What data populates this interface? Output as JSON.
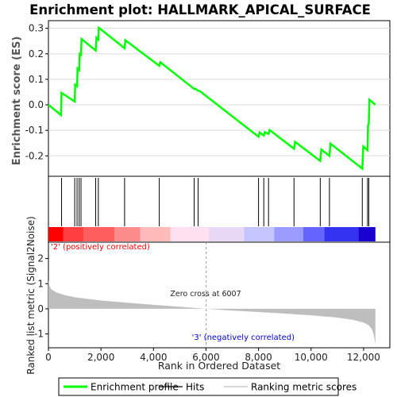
{
  "chart_data": {
    "title": "Enrichment plot: HALLMARK_APICAL_SURFACE",
    "es_panel": {
      "type": "line",
      "ylabel": "Enrichment score (ES)",
      "ylim": [
        -0.28,
        0.33
      ],
      "yticks": [
        "-0.2",
        "-0.1",
        "0.0",
        "0.1",
        "0.2",
        "0.3"
      ],
      "ytick_values": [
        -0.2,
        -0.1,
        0.0,
        0.1,
        0.2,
        0.3
      ],
      "line_color": "#00ff00",
      "series": [
        {
          "name": "Enrichment profile",
          "x": [
            0,
            480,
            500,
            1000,
            1020,
            1090,
            1110,
            1170,
            1190,
            1240,
            1260,
            1800,
            1830,
            1900,
            1920,
            2900,
            2930,
            4220,
            4260,
            5550,
            5600,
            5700,
            5750,
            8000,
            8040,
            8200,
            8240,
            8380,
            8420,
            9350,
            9390,
            10350,
            10390,
            10700,
            10740,
            11950,
            11990,
            12150,
            12170,
            12200,
            12220,
            12450
          ],
          "y": [
            0.0,
            -0.04,
            0.047,
            0.013,
            0.079,
            0.073,
            0.142,
            0.136,
            0.2,
            0.196,
            0.258,
            0.213,
            0.263,
            0.256,
            0.302,
            0.222,
            0.253,
            0.153,
            0.167,
            0.062,
            0.063,
            0.055,
            0.055,
            -0.125,
            -0.108,
            -0.12,
            -0.107,
            -0.114,
            -0.099,
            -0.172,
            -0.145,
            -0.22,
            -0.175,
            -0.2,
            -0.152,
            -0.25,
            -0.163,
            -0.178,
            -0.08,
            -0.075,
            0.02,
            0.0
          ]
        }
      ]
    },
    "hits": [
      500,
      1000,
      1090,
      1170,
      1240,
      1800,
      1900,
      2900,
      4220,
      5550,
      5700,
      8000,
      8200,
      8380,
      9350,
      10350,
      10700,
      11950,
      12150,
      12200
    ],
    "ranked_panel": {
      "type": "area",
      "xlabel": "Rank in Ordered Dataset",
      "ylabel": "Ranked list metric (Signal2Noise)",
      "xlim": [
        0,
        13000
      ],
      "xticks": [
        "0",
        "2,000",
        "4,000",
        "6,000",
        "8,000",
        "10,000",
        "12,000"
      ],
      "xtick_values": [
        0,
        2000,
        4000,
        6000,
        8000,
        10000,
        12000
      ],
      "ylim": [
        -1.55,
        2.65
      ],
      "yticks": [
        "-1",
        "0",
        "1",
        "2"
      ],
      "ytick_values": [
        -1,
        0,
        1,
        2
      ],
      "x": [
        0,
        30,
        100,
        300,
        600,
        1000,
        2000,
        3000,
        4000,
        5000,
        6007,
        7000,
        8000,
        9000,
        10000,
        11000,
        11600,
        12000,
        12200,
        12300,
        12350,
        12400,
        12450
      ],
      "y": [
        1.15,
        0.95,
        0.78,
        0.65,
        0.55,
        0.46,
        0.33,
        0.24,
        0.16,
        0.08,
        0.0,
        -0.07,
        -0.13,
        -0.19,
        -0.26,
        -0.35,
        -0.44,
        -0.55,
        -0.66,
        -0.78,
        -0.9,
        -1.1,
        -1.42
      ],
      "fill_color": "#bebebe",
      "positive_label": "'2' (positively correlated)",
      "negative_label": "'3' (negatively correlated)",
      "zero_cross_label": "Zero cross at 6007",
      "zero_cross": 6007
    },
    "colorbar": {
      "colors": [
        "#ff0000",
        "#ff3f3f",
        "#ff5e5e",
        "#ff8c8c",
        "#ffbaba",
        "#ffe0f0",
        "#e8d8f8",
        "#c4c4ff",
        "#9a9aff",
        "#6666ff",
        "#3434f0",
        "#1a00d0"
      ],
      "bounds": [
        0,
        560,
        1330,
        2520,
        3500,
        4650,
        6100,
        7450,
        8600,
        9700,
        10500,
        11800,
        12450
      ]
    },
    "legend": [
      {
        "label": "Enrichment profile",
        "color": "#00ff00",
        "kind": "thick-line"
      },
      {
        "label": "Hits",
        "color": "#000000",
        "kind": "line"
      },
      {
        "label": "Ranking metric scores",
        "color": "#bebebe",
        "kind": "line"
      }
    ]
  }
}
